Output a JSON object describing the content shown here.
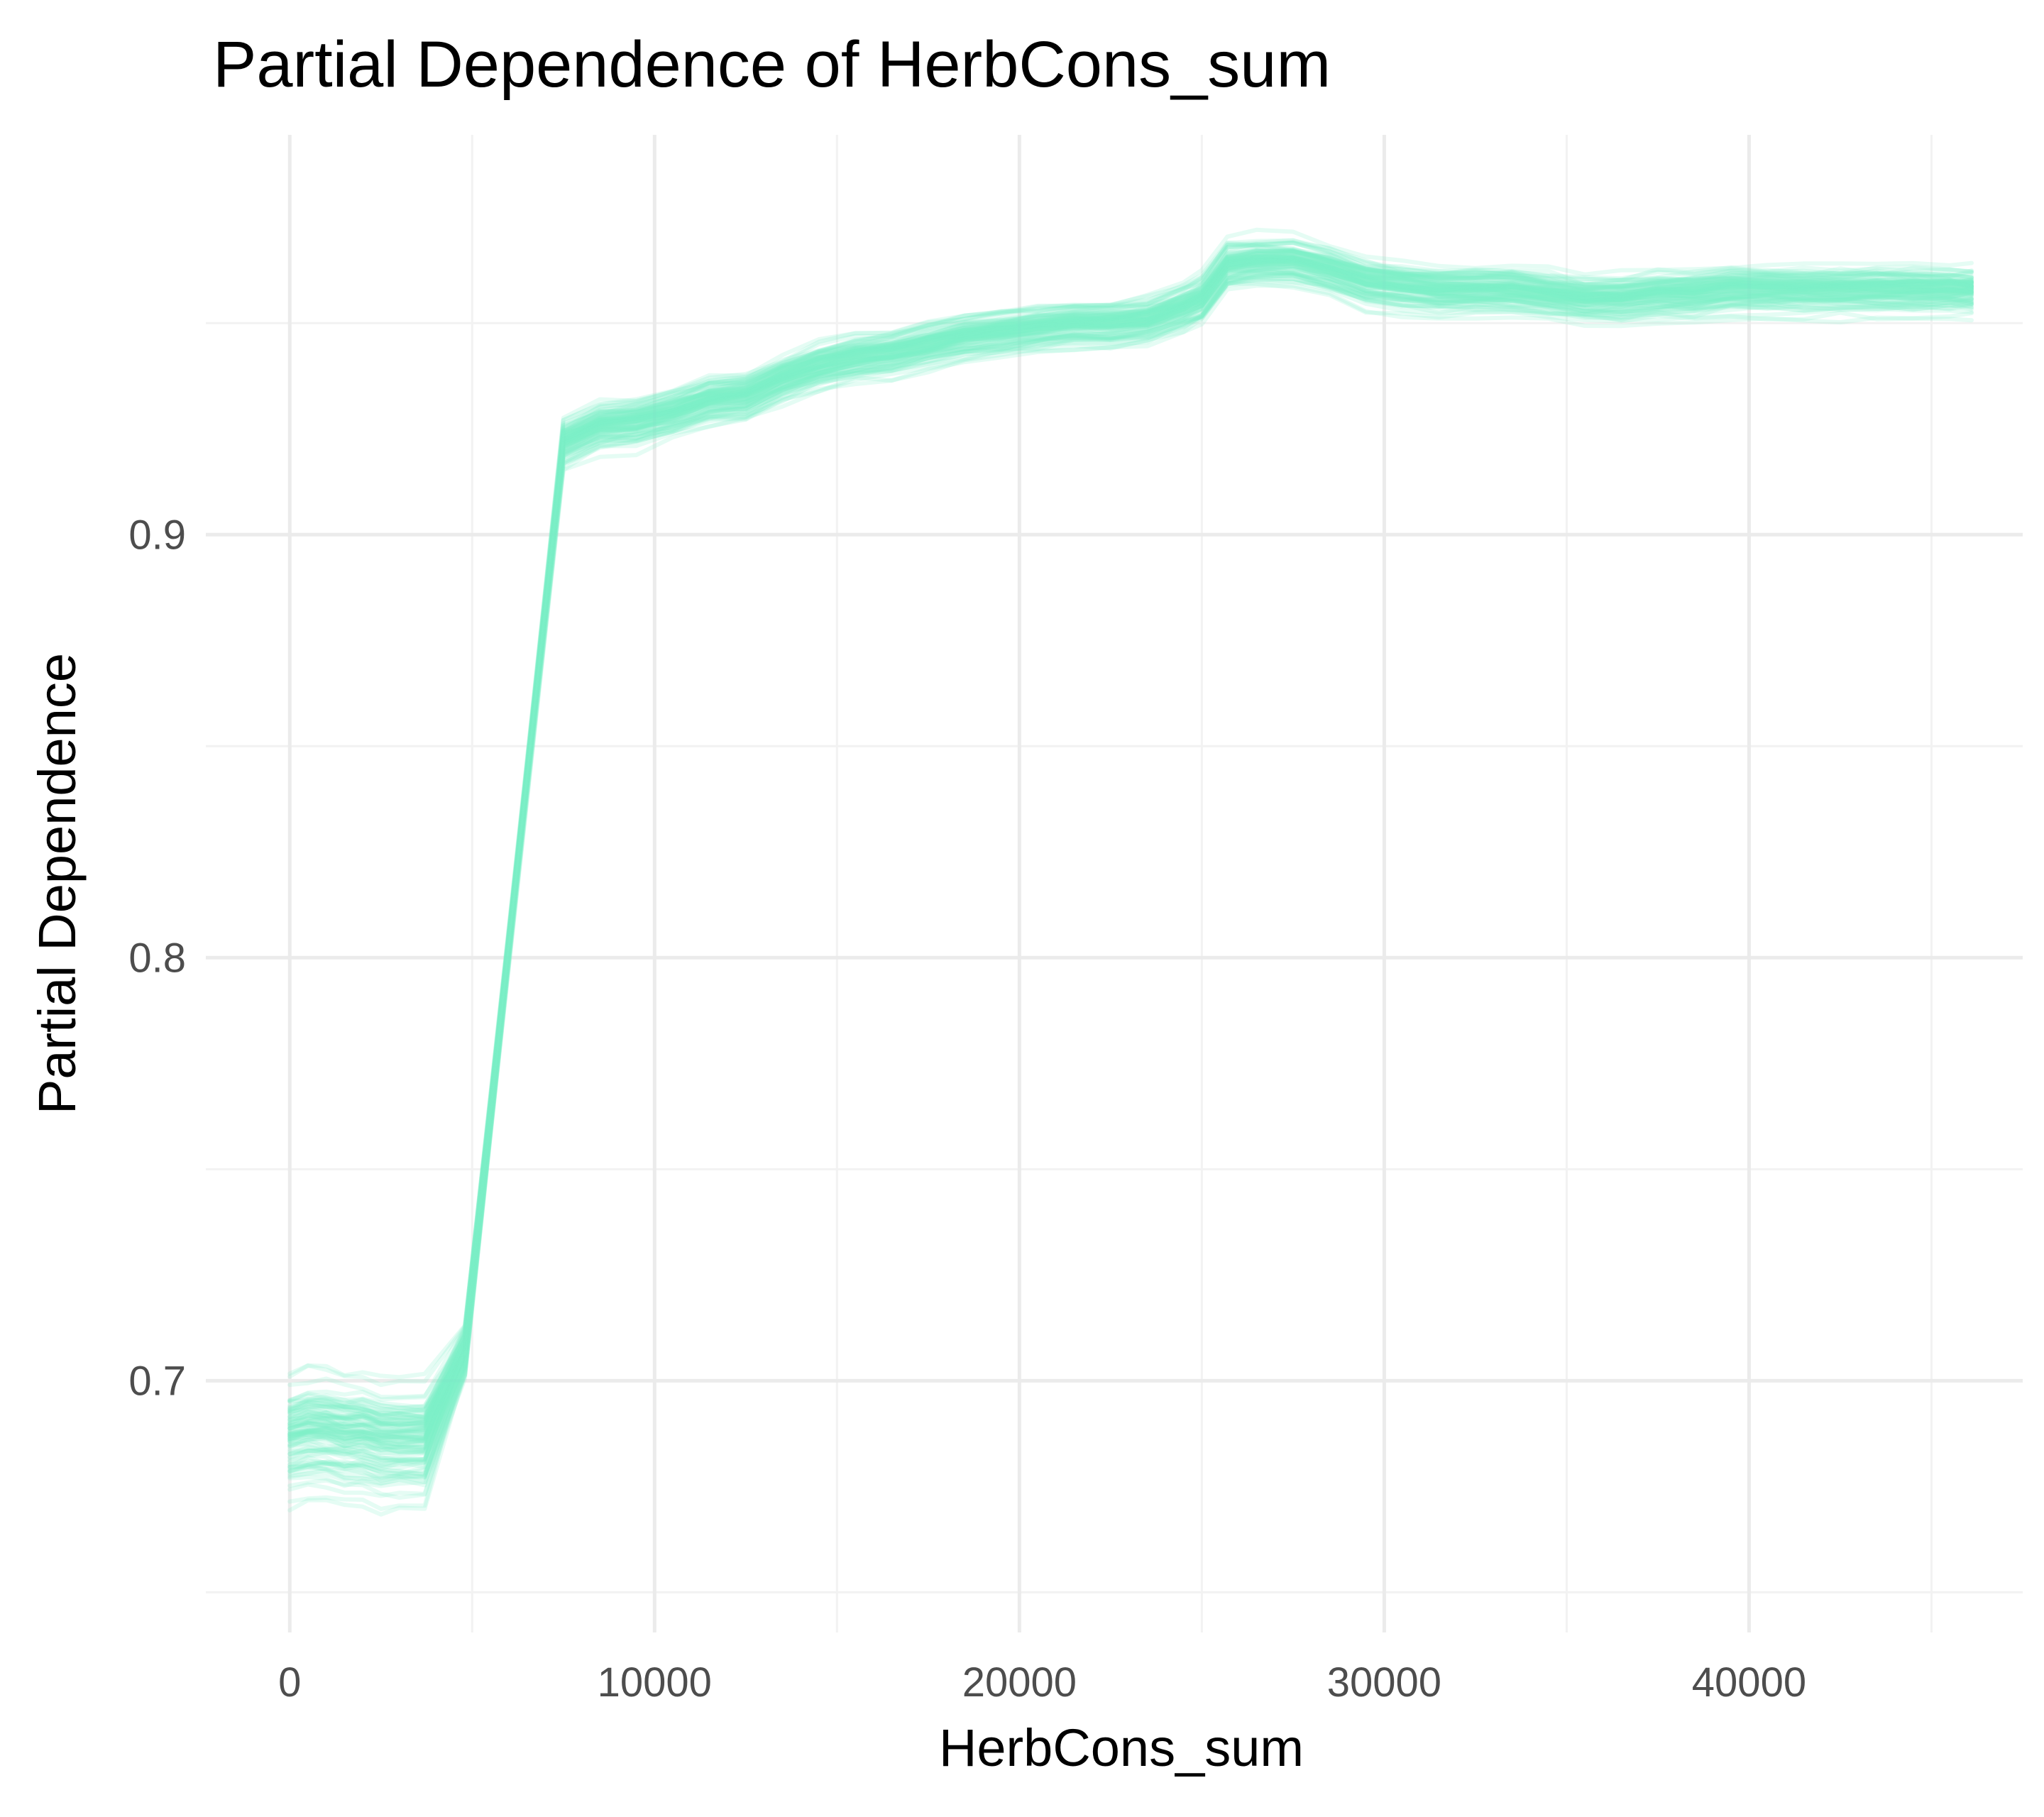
{
  "chart_data": {
    "type": "line",
    "title": "Partial Dependence of HerbCons_sum",
    "xlabel": "HerbCons_sum",
    "ylabel": "Partial Dependence",
    "xlim": [
      -2300,
      47500
    ],
    "ylim": [
      0.6405,
      0.9945
    ],
    "x_major_ticks": [
      0,
      10000,
      20000,
      30000,
      40000
    ],
    "x_tick_labels": [
      "0",
      "10000",
      "20000",
      "30000",
      "40000"
    ],
    "x_minor_ticks": [
      5000,
      15000,
      25000,
      35000,
      45000
    ],
    "y_major_ticks": [
      0.7,
      0.8,
      0.9
    ],
    "y_tick_labels": [
      "0.7",
      "0.8",
      "0.9"
    ],
    "y_minor_ticks": [
      0.65,
      0.75,
      0.85,
      0.95
    ],
    "grid": true,
    "legend": "none",
    "line_color": "#7FF0C8",
    "line_opacity": 0.2,
    "n_curves": 100,
    "curve_x": [
      0,
      500,
      1000,
      1500,
      2000,
      2500,
      3000,
      3700,
      4800,
      7500,
      8500,
      9500,
      10500,
      11500,
      12500,
      13500,
      14500,
      15500,
      16500,
      17500,
      18500,
      19500,
      20500,
      21500,
      22500,
      23500,
      24500,
      25000,
      25700,
      26500,
      27500,
      28500,
      29500,
      30500,
      31500,
      32500,
      33500,
      34500,
      35500,
      36500,
      37500,
      38500,
      39500,
      40500,
      41500,
      42500,
      43500,
      44500,
      45500,
      46100
    ],
    "curve_y_template": [
      0.687,
      0.688,
      0.688,
      0.687,
      0.687,
      0.686,
      0.686,
      0.686,
      0.707,
      0.922,
      0.926,
      0.927,
      0.929,
      0.932,
      0.933,
      0.937,
      0.94,
      0.942,
      0.943,
      0.945,
      0.947,
      0.948,
      0.949,
      0.95,
      0.95,
      0.951,
      0.954,
      0.956,
      0.964,
      0.965,
      0.965,
      0.963,
      0.96,
      0.959,
      0.958,
      0.958,
      0.958,
      0.957,
      0.956,
      0.956,
      0.957,
      0.957,
      0.958,
      0.958,
      0.958,
      0.958,
      0.958,
      0.958,
      0.958,
      0.958
    ],
    "curve_spread": {
      "low_region_offset": [
        -0.035,
        0.032
      ],
      "high_region_offset": [
        -0.018,
        0.018
      ]
    }
  }
}
